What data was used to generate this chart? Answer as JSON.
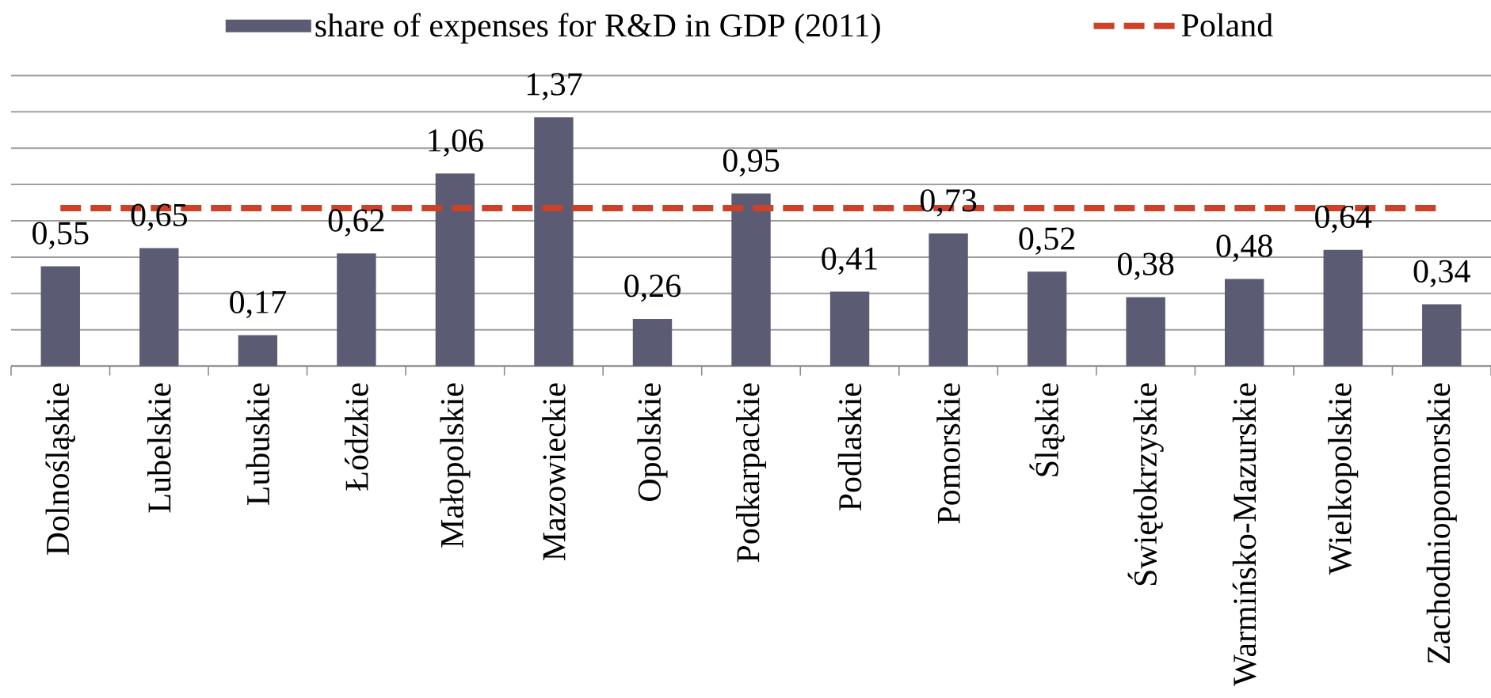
{
  "chart_data": {
    "type": "bar",
    "categories": [
      "Dolnośląskie",
      "Lubelskie",
      "Lubuskie",
      "Łódzkie",
      "Małopolskie",
      "Mazowieckie",
      "Opolskie",
      "Podkarpackie",
      "Podlaskie",
      "Pomorskie",
      "Śląskie",
      "Świętokrzyskie",
      "Warmińsko-Mazurskie",
      "Wielkopolskie",
      "Zachodniopomorskie"
    ],
    "series": [
      {
        "name": "share of expenses for R&D in GDP (2011)",
        "color": "#5b5b73",
        "values": [
          0.55,
          0.65,
          0.17,
          0.62,
          1.06,
          1.37,
          0.26,
          0.95,
          0.41,
          0.73,
          0.52,
          0.38,
          0.48,
          0.64,
          0.34
        ],
        "value_labels": [
          "0,55",
          "0,65",
          "0,17",
          "0,62",
          "1,06",
          "1,37",
          "0,26",
          "0,95",
          "0,41",
          "0,73",
          "0,52",
          "0,38",
          "0,48",
          "0,64",
          "0,34"
        ]
      },
      {
        "name": "Poland",
        "type": "line",
        "color": "#cc4127",
        "line_style": "dashed",
        "marker": "none",
        "values": [
          0.87,
          0.87,
          0.87,
          0.87,
          0.87,
          0.87,
          0.87,
          0.87,
          0.87,
          0.87,
          0.87,
          0.87,
          0.87,
          0.87,
          0.87
        ]
      }
    ],
    "ylim": [
      0,
      1.6
    ],
    "yticks": [
      {
        "value": 0,
        "label": null
      },
      {
        "value": 0.2,
        "label": null
      },
      {
        "value": 0.4,
        "label": null
      },
      {
        "value": 0.6,
        "label": null
      },
      {
        "value": 0.8,
        "label": null
      },
      {
        "value": 1.0,
        "label": null
      },
      {
        "value": 1.2,
        "label": null
      },
      {
        "value": 1.4,
        "label": null
      },
      {
        "value": 1.6,
        "label": null
      }
    ],
    "grid": "y",
    "legend": "top",
    "tick_labels": "x"
  }
}
